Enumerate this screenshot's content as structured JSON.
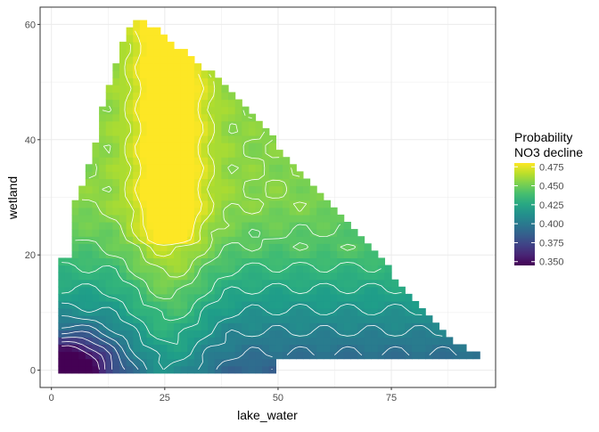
{
  "chart_data": {
    "type": "heatmap",
    "title": "",
    "xlabel": "lake_water",
    "ylabel": "wetland",
    "xlim": [
      -2.5,
      98
    ],
    "ylim": [
      -3,
      63
    ],
    "x_ticks": [
      "0",
      "25",
      "50",
      "75"
    ],
    "x_tick_values": [
      0,
      25,
      50,
      75
    ],
    "y_ticks": [
      "0",
      "20",
      "40",
      "60"
    ],
    "y_tick_values": [
      0,
      20,
      40,
      60
    ],
    "grid": true,
    "legend": {
      "title_lines": [
        "Probability",
        "NO3 decline"
      ],
      "position": "right",
      "ticks": [
        "0.475",
        "0.450",
        "0.425",
        "0.400",
        "0.375",
        "0.350"
      ],
      "tick_values": [
        0.475,
        0.45,
        0.425,
        0.4,
        0.375,
        0.35
      ],
      "range": [
        0.345,
        0.48
      ]
    },
    "colormap": "viridis",
    "contour_color": "#ffffff",
    "grid_step": {
      "x": 1.5,
      "y": 1.25
    },
    "domain": {
      "x_min": 1.5,
      "y_min": -0.5,
      "lower_block": {
        "y_max": 19,
        "x_max": 4
      },
      "top_profile": [
        [
          4,
          22
        ],
        [
          4.5,
          28
        ],
        [
          7,
          32
        ],
        [
          9,
          37
        ],
        [
          11,
          45
        ],
        [
          13,
          50
        ],
        [
          15,
          55
        ],
        [
          17,
          59
        ],
        [
          19,
          61
        ],
        [
          22,
          60
        ],
        [
          25,
          58
        ],
        [
          28,
          56
        ],
        [
          33,
          53
        ],
        [
          40,
          48
        ],
        [
          47,
          42
        ],
        [
          55,
          34
        ],
        [
          62,
          29
        ],
        [
          70,
          22
        ],
        [
          75,
          17
        ],
        [
          82,
          11
        ],
        [
          88,
          5
        ],
        [
          94.5,
          2.5
        ]
      ],
      "bottom_row_steps": [
        [
          50,
          0.5
        ],
        [
          79,
          1.5
        ],
        [
          94.5,
          2.5
        ]
      ]
    },
    "model": {
      "base": 0.415,
      "upper_band": {
        "y_from": 21,
        "value": 0.455,
        "ramp": 8
      },
      "lower_gradient": {
        "y_from": 0,
        "y_to": 21,
        "amount": 0.055
      },
      "x_bump": {
        "center": 26,
        "width": 9,
        "amount": 0.025
      },
      "x_ridge_upper": {
        "center": 26,
        "width": 6,
        "amount": 0.02
      },
      "low_corner": {
        "x": 4,
        "y": 1,
        "width": 9,
        "amount": 0.06
      }
    }
  }
}
